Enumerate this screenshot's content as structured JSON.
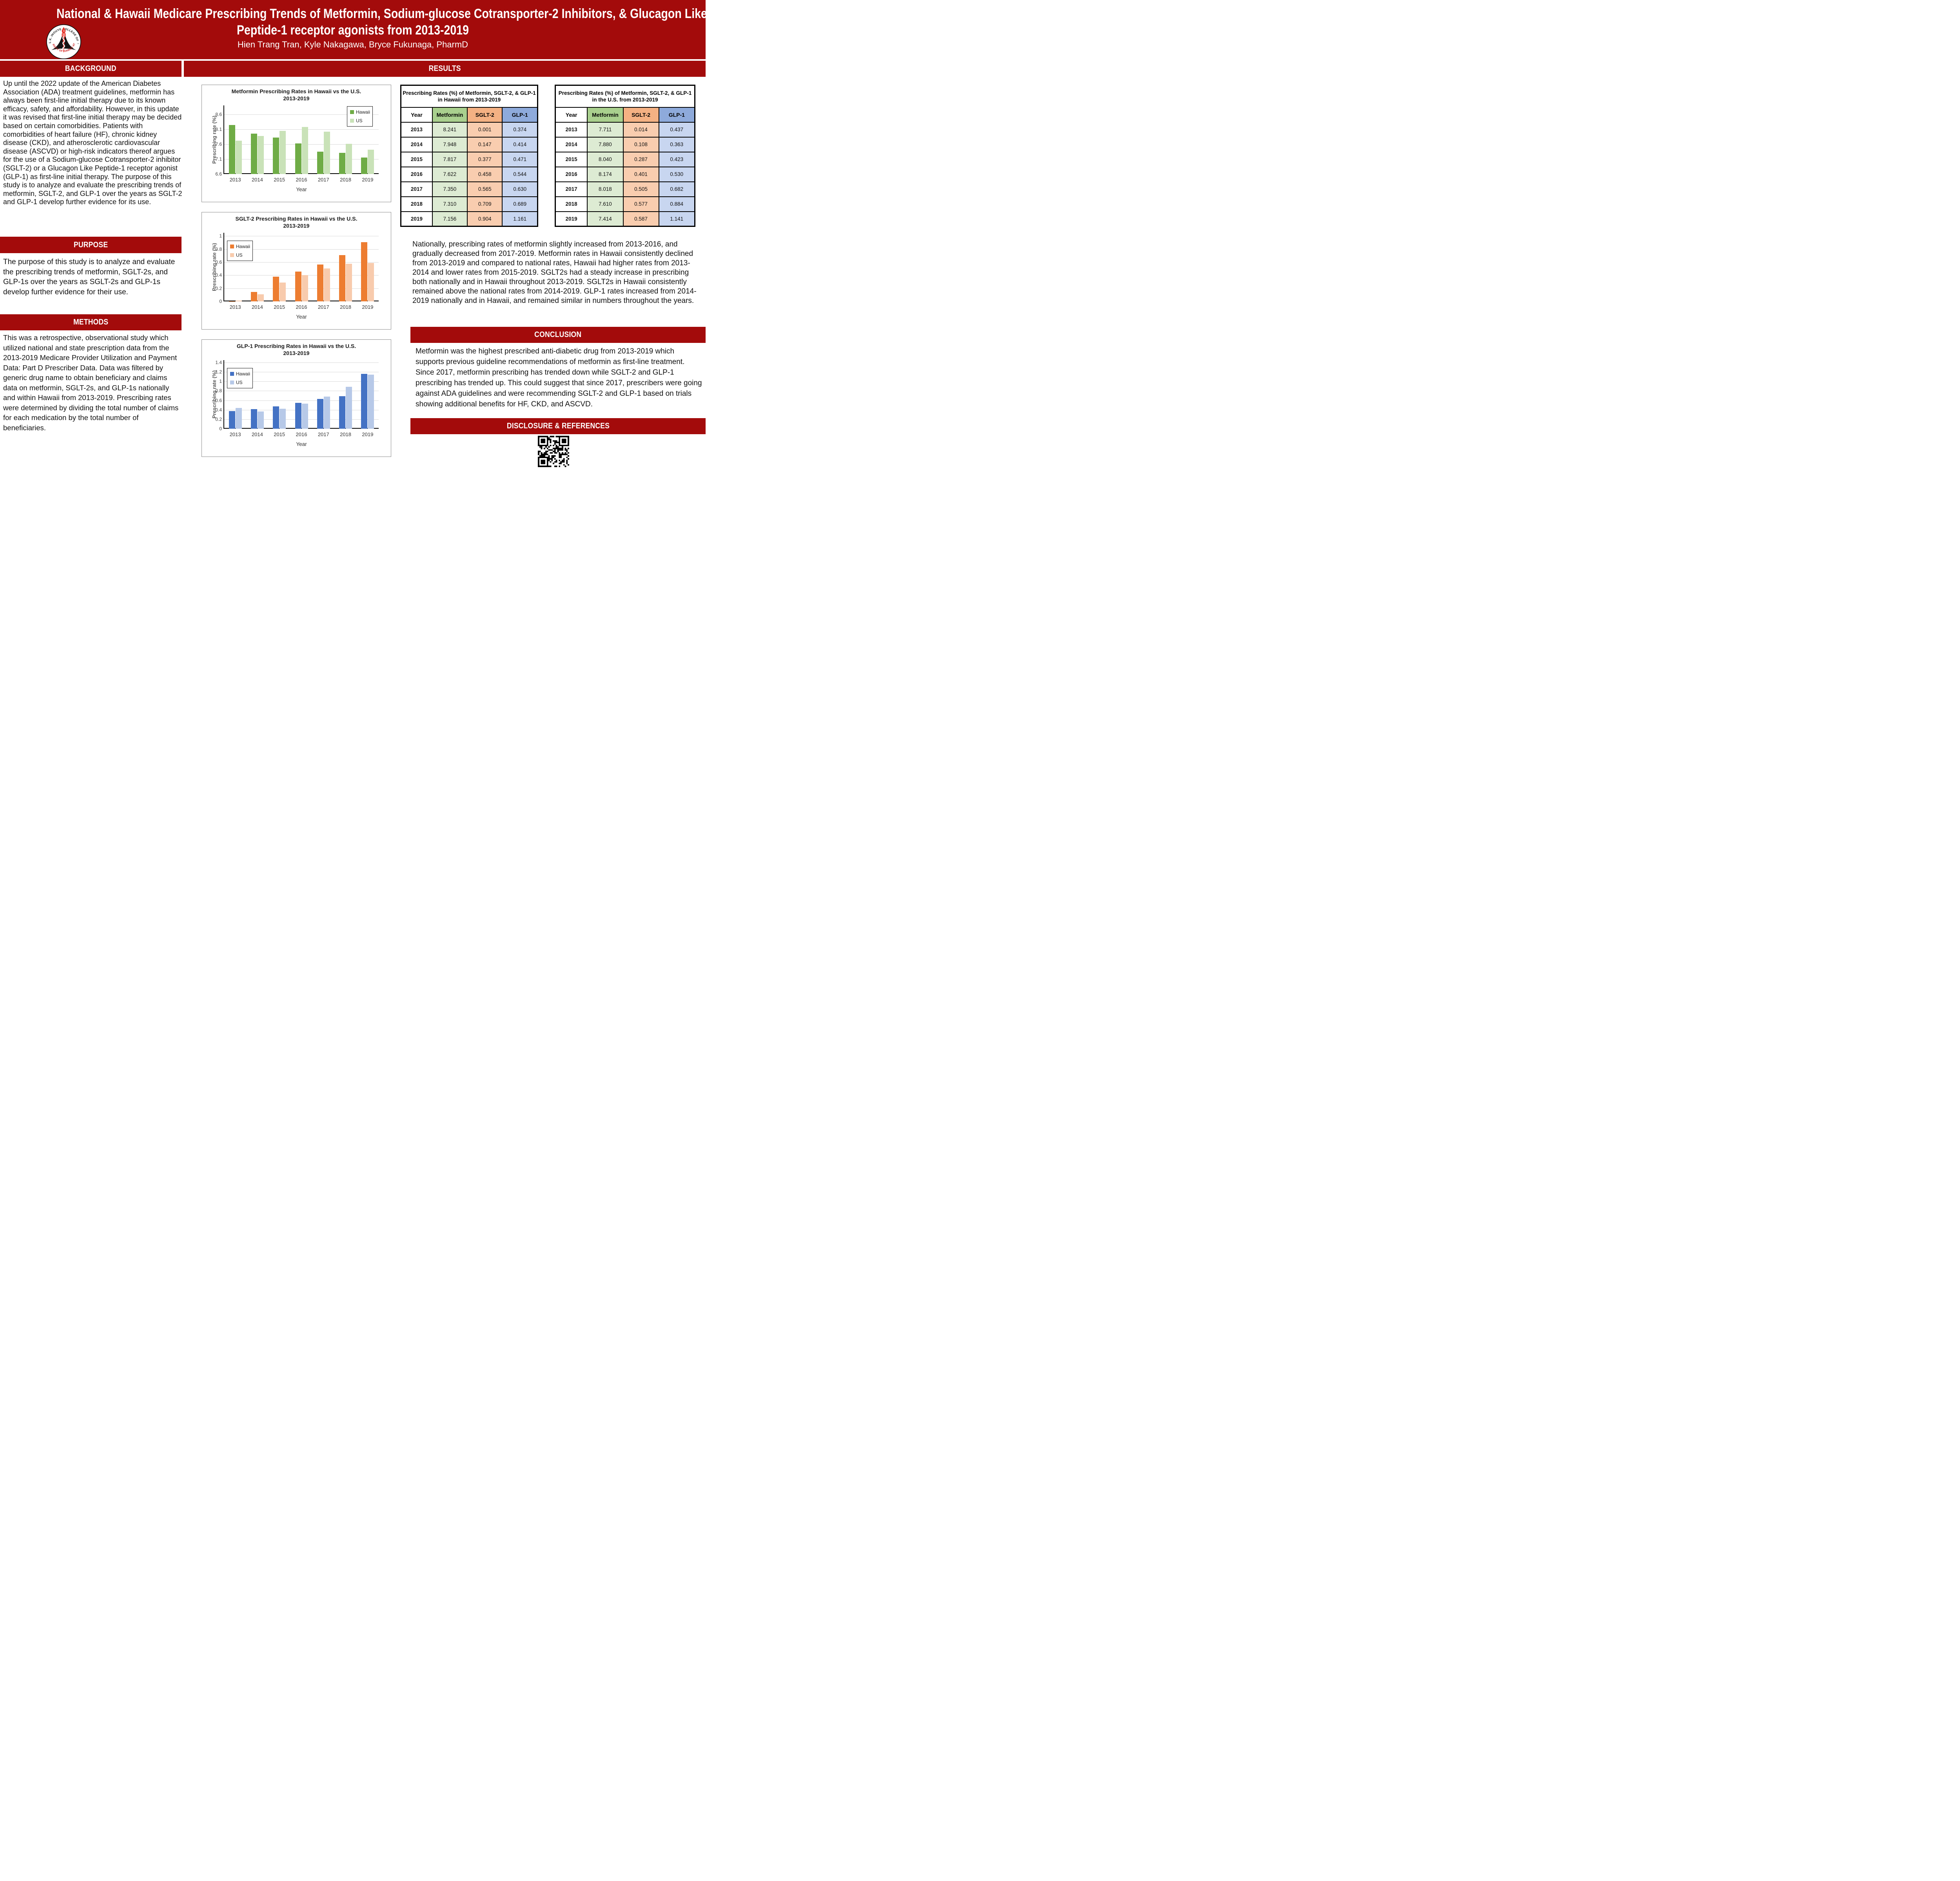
{
  "colors": {
    "dark_red": "#A30B0B",
    "chart_border": "#8c8c8c",
    "hawaii_green": "#6FAC46",
    "us_green": "#C9E2B8",
    "hawaii_orange": "#ED7D31",
    "us_orange": "#F8CBAD",
    "hawaii_blue": "#4472C4",
    "us_blue": "#B7C9E8",
    "table_green_header": "#A9D08E",
    "table_green_cell": "#DDEBD3",
    "table_orange_header": "#F4B183",
    "table_orange_cell": "#F9CDAF",
    "table_blue_header": "#8EAADB",
    "table_blue_cell": "#C8D6F0"
  },
  "header": {
    "title_lines": [
      "National & Hawaii Medicare Prescribing Trends of Metformin, Sodium-glucose Cotransporter-2 Inhibitors, & Glucagon Like",
      "Peptide-1 receptor agonists from 2013-2019"
    ],
    "authors": "Hien Trang Tran, Kyle Nakagawa, Bryce Fukunaga, PharmD",
    "seal": {
      "top_text": "THE DANIEL K. INOUYE COLLEGE OF PHARMACY",
      "bottom_text": "UNIVERSITY OF HAWAI‘I AT HILO",
      "trademark": "TM"
    }
  },
  "sections": {
    "background": {
      "heading": "BACKGROUND",
      "body": "Up until the 2022 update of the American Diabetes Association (ADA) treatment guidelines, metformin has always been first-line initial therapy due to its known efficacy, safety, and affordability. However, in this update it was revised that first-line initial therapy may be decided based on certain comorbidities. Patients with comorbidities of heart failure (HF), chronic kidney disease (CKD), and atherosclerotic cardiovascular disease (ASCVD) or high-risk indicators thereof argues for the use of a Sodium-glucose Cotransporter-2 inhibitor (SGLT-2) or a Glucagon Like Peptide-1 receptor agonist (GLP-1) as first-line initial therapy. The purpose of this study is to analyze and evaluate the prescribing trends of metformin, SGLT-2, and GLP-1 over the years as SGLT-2 and GLP-1 develop further evidence for its use."
    },
    "purpose": {
      "heading": "PURPOSE",
      "body": "The purpose of this study is to analyze and evaluate the prescribing trends of metformin, SGLT-2s, and GLP-1s over the years as SGLT-2s and GLP-1s develop further evidence for their use."
    },
    "methods": {
      "heading": "METHODS",
      "body": "This was a retrospective, observational study which utilized national and state prescription data from the 2013-2019 Medicare Provider Utilization and Payment Data: Part D Prescriber Data. Data was filtered by generic drug name to obtain beneficiary and claims data on metformin, SGLT-2s, and GLP-1s nationally and within Hawaii from 2013-2019. Prescribing rates were determined by dividing the total number of claims for each medication by the total number of beneficiaries."
    },
    "results": {
      "heading": "RESULTS",
      "summary": "Nationally, prescribing rates of metformin slightly increased from 2013-2016, and gradually decreased from 2017-2019. Metformin rates in Hawaii consistently declined from 2013-2019 and compared to national rates, Hawaii had higher rates from 2013-2014 and lower rates from 2015-2019. SGLT2s had a steady increase in prescribing both nationally and in Hawaii throughout 2013-2019. SGLT2s in Hawaii consistently remained above the national rates from 2014-2019. GLP-1 rates increased from 2014-2019 nationally and in Hawaii, and remained similar in numbers throughout the years."
    },
    "conclusion": {
      "heading": "CONCLUSION",
      "body": "Metformin was the highest prescribed anti-diabetic drug from 2013-2019 which supports previous guideline recommendations of metformin as first-line treatment. Since 2017, metformin prescribing has trended down while SGLT-2 and GLP-1 prescribing has trended up. This could suggest that since 2017, prescribers were going against ADA guidelines and were recommending SGLT-2 and GLP-1 based on trials showing additional benefits for HF, CKD, and ASCVD."
    },
    "disclosure": {
      "heading": "DISCLOSURE & REFERENCES"
    }
  },
  "tables": [
    {
      "title": "Prescribing Rates (%) of Metformin, SGLT-2, & GLP-1 in Hawaii from 2013-2019",
      "columns": [
        "Year",
        "Metformin",
        "SGLT-2",
        "GLP-1"
      ],
      "rows": [
        [
          "2013",
          "8.241",
          "0.001",
          "0.374"
        ],
        [
          "2014",
          "7.948",
          "0.147",
          "0.414"
        ],
        [
          "2015",
          "7.817",
          "0.377",
          "0.471"
        ],
        [
          "2016",
          "7.622",
          "0.458",
          "0.544"
        ],
        [
          "2017",
          "7.350",
          "0.565",
          "0.630"
        ],
        [
          "2018",
          "7.310",
          "0.709",
          "0.689"
        ],
        [
          "2019",
          "7.156",
          "0.904",
          "1.161"
        ]
      ]
    },
    {
      "title": "Prescribing Rates (%) of Metformin, SGLT-2, & GLP-1 in the U.S. from 2013-2019",
      "columns": [
        "Year",
        "Metformin",
        "SGLT-2",
        "GLP-1"
      ],
      "rows": [
        [
          "2013",
          "7.711",
          "0.014",
          "0.437"
        ],
        [
          "2014",
          "7.880",
          "0.108",
          "0.363"
        ],
        [
          "2015",
          "8.040",
          "0.287",
          "0.423"
        ],
        [
          "2016",
          "8.174",
          "0.401",
          "0.530"
        ],
        [
          "2017",
          "8.018",
          "0.505",
          "0.682"
        ],
        [
          "2018",
          "7.610",
          "0.577",
          "0.884"
        ],
        [
          "2019",
          "7.414",
          "0.587",
          "1.141"
        ]
      ]
    }
  ],
  "chart_data": [
    {
      "type": "bar",
      "title_lines": [
        "Metformin Prescribing Rates in Hawaii vs the U.S.",
        "2013-2019"
      ],
      "categories": [
        "2013",
        "2014",
        "2015",
        "2016",
        "2017",
        "2018",
        "2019"
      ],
      "series": [
        {
          "name": "Hawaii",
          "color": "#6FAC46",
          "values": [
            8.241,
            7.948,
            7.817,
            7.622,
            7.35,
            7.31,
            7.156
          ]
        },
        {
          "name": "US",
          "color": "#C9E2B8",
          "values": [
            7.711,
            7.88,
            8.04,
            8.174,
            8.018,
            7.61,
            7.414
          ]
        }
      ],
      "xlabel": "Year",
      "ylabel": "Prescribing rate (%)",
      "ylim": [
        6.6,
        8.9
      ],
      "yticks": [
        "6.6",
        "7.1",
        "7.6",
        "8.1",
        "8.6"
      ],
      "grid": true,
      "legend_position": "top-right"
    },
    {
      "type": "bar",
      "title_lines": [
        "SGLT-2 Prescribing Rates in Hawaii vs the U.S.",
        "2013-2019"
      ],
      "categories": [
        "2013",
        "2014",
        "2015",
        "2016",
        "2017",
        "2018",
        "2019"
      ],
      "series": [
        {
          "name": "Hawaii",
          "color": "#ED7D31",
          "values": [
            0.001,
            0.147,
            0.377,
            0.458,
            0.565,
            0.709,
            0.904
          ]
        },
        {
          "name": "US",
          "color": "#F8CBAD",
          "values": [
            0.014,
            0.108,
            0.287,
            0.401,
            0.505,
            0.577,
            0.587
          ]
        }
      ],
      "xlabel": "Year",
      "ylabel": "Prescribing rate (%)",
      "ylim": [
        0,
        1.05
      ],
      "yticks": [
        "0",
        "0.2",
        "0.4",
        "0.6",
        "0.8",
        "1"
      ],
      "grid": true,
      "legend_position": "top-left"
    },
    {
      "type": "bar",
      "title_lines": [
        "GLP-1 Prescribing Rates in Hawaii vs the U.S.",
        "2013-2019"
      ],
      "categories": [
        "2013",
        "2014",
        "2015",
        "2016",
        "2017",
        "2018",
        "2019"
      ],
      "series": [
        {
          "name": "Hawaii",
          "color": "#4472C4",
          "values": [
            0.374,
            0.414,
            0.471,
            0.544,
            0.63,
            0.689,
            1.161
          ]
        },
        {
          "name": "US",
          "color": "#B7C9E8",
          "values": [
            0.437,
            0.363,
            0.423,
            0.53,
            0.682,
            0.884,
            1.141
          ]
        }
      ],
      "xlabel": "Year",
      "ylabel": "Prescribing rate (%)",
      "ylim": [
        0,
        1.45
      ],
      "yticks": [
        "0",
        "0.2",
        "0.4",
        "0.6",
        "0.8",
        "1",
        "1.2",
        "1.4"
      ],
      "grid": true,
      "legend_position": "top-left"
    }
  ]
}
